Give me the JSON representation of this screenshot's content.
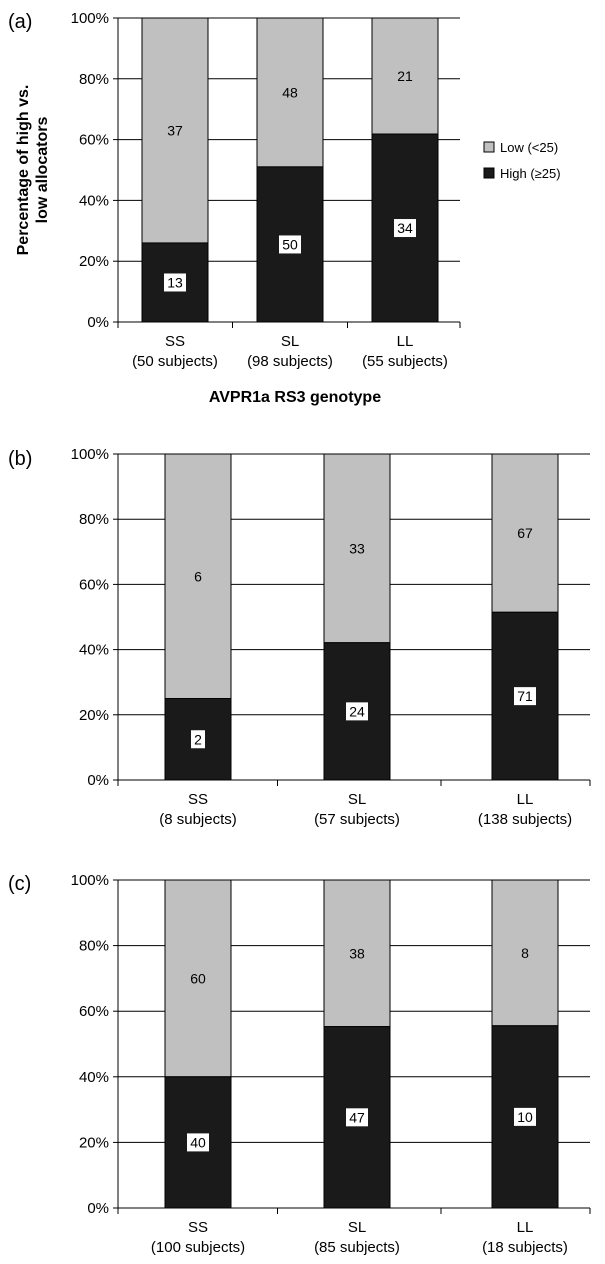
{
  "legend": {
    "items": [
      {
        "label": "Low (<25)",
        "color": "#c0c0c0"
      },
      {
        "label": "High (≥25)",
        "color": "#1a1a1a"
      }
    ]
  },
  "colors": {
    "low": "#c0c0c0",
    "high": "#1a1a1a"
  },
  "chart_data": [
    {
      "type": "bar",
      "stacked": true,
      "panel_label": "(a)",
      "ylabel": "Percentage of high vs. low allocators",
      "xlabel": "AVPR1a RS3 genotype",
      "yticks": [
        "0%",
        "20%",
        "40%",
        "60%",
        "80%",
        "100%"
      ],
      "ylim": [
        0,
        100
      ],
      "categories": [
        "SS",
        "SL",
        "LL"
      ],
      "category_subjects": [
        "(50 subjects)",
        "(98 subjects)",
        "(55 subjects)"
      ],
      "series": [
        {
          "name": "High (≥25)",
          "counts": [
            13,
            50,
            34
          ]
        },
        {
          "name": "Low (<25)",
          "counts": [
            37,
            48,
            21
          ]
        }
      ]
    },
    {
      "type": "bar",
      "stacked": true,
      "panel_label": "(b)",
      "ylabel": "",
      "xlabel": "",
      "yticks": [
        "0%",
        "20%",
        "40%",
        "60%",
        "80%",
        "100%"
      ],
      "ylim": [
        0,
        100
      ],
      "categories": [
        "SS",
        "SL",
        "LL"
      ],
      "category_subjects": [
        "(8 subjects)",
        "(57 subjects)",
        "(138 subjects)"
      ],
      "series": [
        {
          "name": "High (≥25)",
          "counts": [
            2,
            24,
            71
          ]
        },
        {
          "name": "Low (<25)",
          "counts": [
            6,
            33,
            67
          ]
        }
      ]
    },
    {
      "type": "bar",
      "stacked": true,
      "panel_label": "(c)",
      "ylabel": "",
      "xlabel": "",
      "yticks": [
        "0%",
        "20%",
        "40%",
        "60%",
        "80%",
        "100%"
      ],
      "ylim": [
        0,
        100
      ],
      "categories": [
        "SS",
        "SL",
        "LL"
      ],
      "category_subjects": [
        "(100 subjects)",
        "(85 subjects)",
        "(18 subjects)"
      ],
      "series": [
        {
          "name": "High (≥25)",
          "counts": [
            40,
            47,
            10
          ]
        },
        {
          "name": "Low (<25)",
          "counts": [
            60,
            38,
            8
          ]
        }
      ]
    }
  ]
}
